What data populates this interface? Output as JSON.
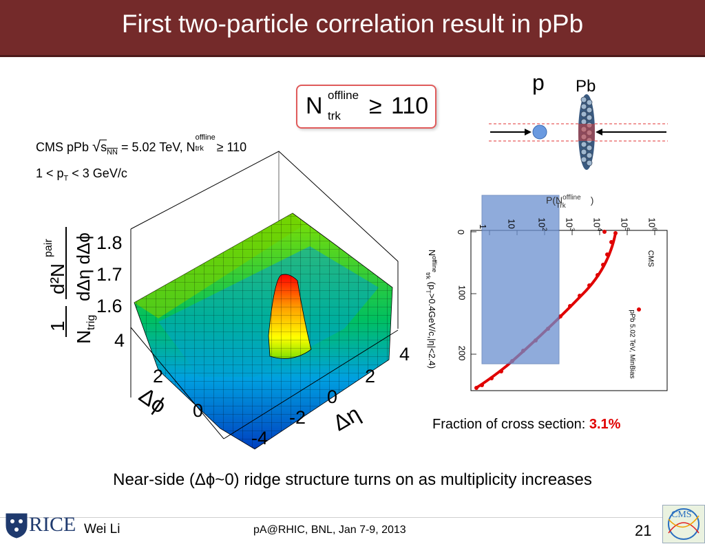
{
  "slide": {
    "title": "First two-particle correlation result in pPb",
    "caption": "Near-side (Δϕ~0) ridge structure turns on as multiplicity increases",
    "page_number": "21"
  },
  "ntrk_box": {
    "main": "N",
    "superscript": "offline",
    "subscript": "trk",
    "relation": "≥",
    "value": "110"
  },
  "collision": {
    "p_label": "p",
    "pb_label": "Pb"
  },
  "surface_plot": {
    "header_line1_a": "CMS pPb ",
    "header_sqrt": "√",
    "header_s": "s",
    "header_nn": "NN",
    "header_line1_b": " = 5.02 TeV, N",
    "header_offline": "offline",
    "header_trk": "trk",
    "header_line1_c": " ≥ 110",
    "header_line2_a": "1 < p",
    "header_line2_t": "T",
    "header_line2_b": " < 3 GeV/c",
    "z_axis_title": "1/N_trig d²N^pair/dΔη dΔϕ",
    "z_frac1_num": "1",
    "z_frac1_den": "N",
    "z_frac1_den_sub": "trig",
    "z_frac2_num": "d²N",
    "z_frac2_num_sup": "pair",
    "z_frac2_den": "dΔη dΔϕ",
    "z_ticks": [
      "1.8",
      "1.7",
      "1.6"
    ],
    "phi_ticks": [
      "4",
      "2",
      "0"
    ],
    "phi_label": "Δϕ",
    "eta_ticks": [
      "4",
      "2",
      "0",
      "-2",
      "-4"
    ],
    "eta_label": "Δη"
  },
  "mult_plot": {
    "cms_label": "CMS",
    "legend": "pPb 5.02 TeV, MinBias",
    "p_label": "P(N",
    "p_sup": "offline",
    "p_sub": "Trk",
    "p_close": ")",
    "axis_label": "N",
    "axis_sup": "offline",
    "axis_sub": "trk",
    "axis_rest": " (p",
    "axis_t": "T",
    "axis_rest2": ">0.4GeV/c,|η|<2.4)",
    "n_ticks": [
      "0",
      "100",
      "200"
    ],
    "p_ticks": [
      "1",
      "10",
      "10",
      "10",
      "10",
      "10",
      "10"
    ],
    "p_tick_exps": [
      "",
      "",
      "2",
      "3",
      "4",
      "5",
      "6"
    ]
  },
  "cross_section": {
    "label": "Fraction of cross section: ",
    "value": "3.1%",
    "value_color": "#e00000"
  },
  "footer": {
    "org": "RICE",
    "author": "Wei Li",
    "event": "pA@RHIC, BNL, Jan 7-9, 2013",
    "logo_text": "CMS"
  },
  "colors": {
    "title_bg": "#742a2a",
    "accent_red": "#e00000",
    "selection_blue": "#6a8fd0"
  },
  "chart_data": {
    "type": "scatter",
    "xlabel": "N^offline_trk (p_T>0.4GeV/c,|η|<2.4)",
    "ylabel": "P(N^offline_Trk)",
    "x_ticks": [
      0,
      100,
      200
    ],
    "y_scale": "log",
    "series": [
      {
        "name": "pPb 5.02 TeV, MinBias"
      }
    ]
  }
}
